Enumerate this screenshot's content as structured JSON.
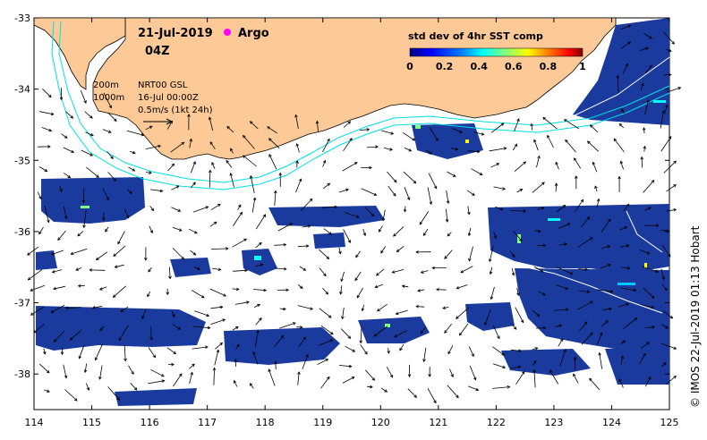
{
  "header": {
    "date": "21-Jul-2019",
    "hour": "04Z",
    "argo_label": "Argo"
  },
  "legend": {
    "line1": "200m",
    "line2": "1000m",
    "product": "NRT00 GSL",
    "product_date": "16-Jul 00:00Z",
    "scale": "0.5m/s (1kt 24h)"
  },
  "colorbar": {
    "title": "std dev of 4hr SST comp",
    "ticks": [
      "0",
      "0.2",
      "0.4",
      "0.6",
      "0.8",
      "1"
    ],
    "colors": [
      "#00007f",
      "#0000ff",
      "#007fff",
      "#00ffff",
      "#7fff7f",
      "#ffff00",
      "#ff7f00",
      "#ff0000",
      "#7f0000"
    ]
  },
  "axes": {
    "x_ticks": [
      "114",
      "115",
      "116",
      "117",
      "118",
      "119",
      "120",
      "121",
      "122",
      "123",
      "124",
      "125"
    ],
    "y_ticks": [
      "-33",
      "-34",
      "-35",
      "-36",
      "-37",
      "-38"
    ],
    "lon_range": [
      114,
      125
    ],
    "lat_range": [
      -38.5,
      -33
    ]
  },
  "credit": "© IMOS 22-Jul-2019 01:13 Hobart",
  "colors": {
    "land": "#fcc997",
    "ocean": "#ffffff",
    "isobath": "#00e5e5",
    "sst_dark": "#1a3a9e"
  }
}
